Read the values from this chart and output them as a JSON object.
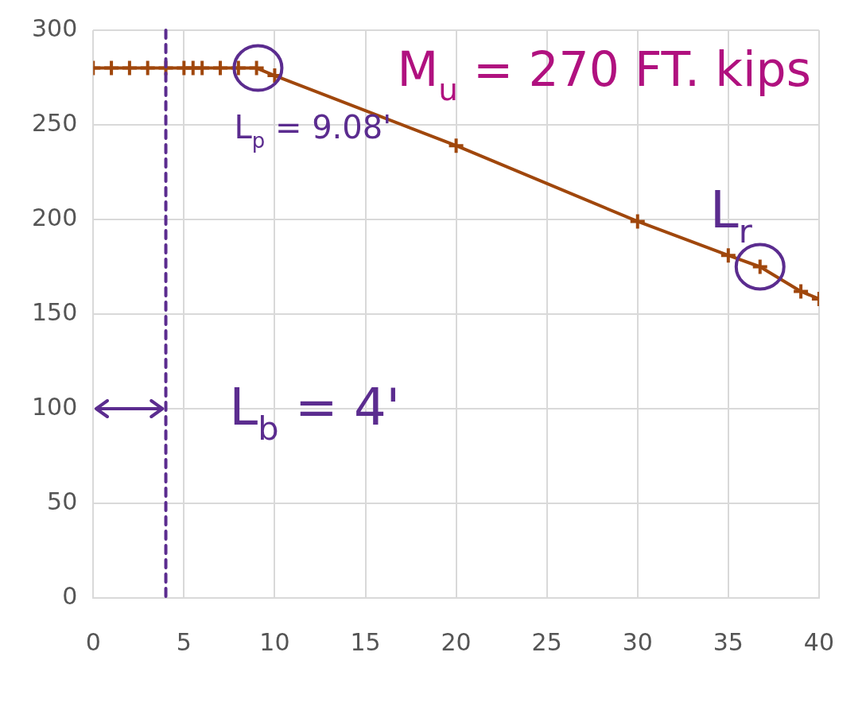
{
  "chart_data": {
    "type": "line",
    "x": [
      0,
      1,
      2,
      3,
      4,
      5,
      5.5,
      6,
      7,
      8,
      9,
      10,
      20,
      30,
      35,
      36.75,
      39,
      40
    ],
    "series": [
      {
        "color": "#a0470c",
        "values": [
          280,
          280,
          280,
          280,
          280,
          280,
          280,
          280,
          280,
          280,
          280,
          276,
          239,
          199,
          181,
          175,
          162,
          158
        ]
      }
    ],
    "xlim": [
      0,
      40
    ],
    "xticks": [
      0,
      5,
      10,
      15,
      20,
      25,
      30,
      35,
      40
    ],
    "ylim": [
      0,
      300
    ],
    "yticks": [
      0,
      50,
      100,
      150,
      200,
      250,
      300
    ],
    "grid": true,
    "legend": false,
    "marker": "cross",
    "line_style": "solid",
    "ref_lines": [
      {
        "axis": "x",
        "value": 4,
        "label": "L$_{b}$ = 4'",
        "color": "#5b2c8f",
        "line_style": "dashed"
      }
    ],
    "annotations": [
      {
        "text": "L$_{p}$ = 9.08'",
        "x": 9.08,
        "y": 280
      },
      {
        "text": "L$_{r}$",
        "x": 36.75,
        "y": 175
      },
      "M$_{u}$ = 270 FT. kips"
    ]
  }
}
